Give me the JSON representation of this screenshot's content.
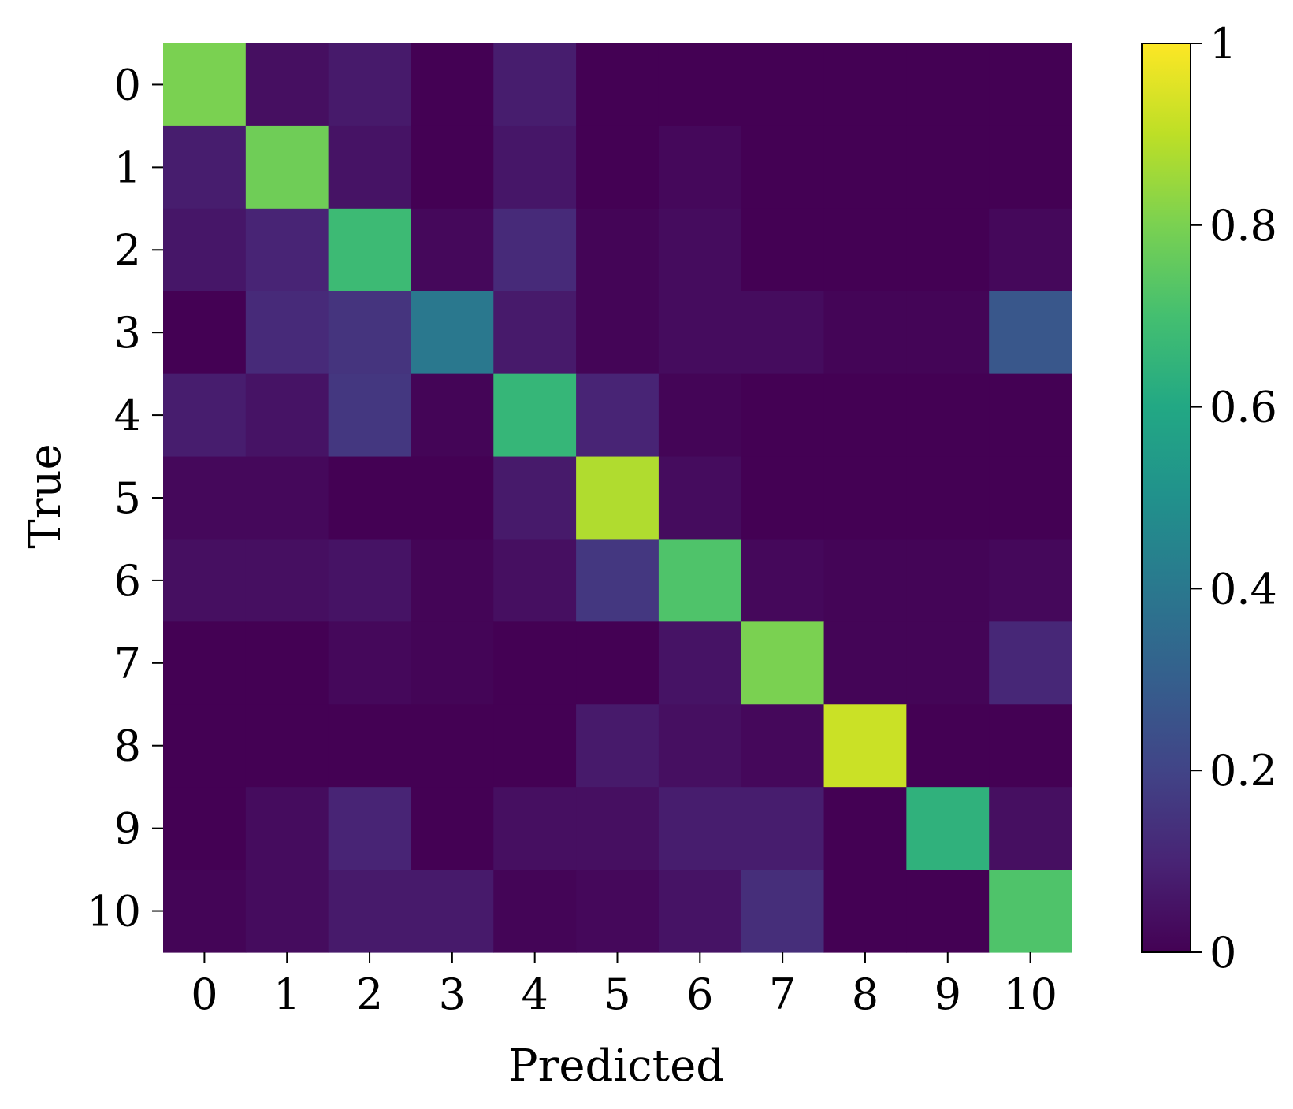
{
  "chart_data": {
    "type": "heatmap",
    "xlabel": "Predicted",
    "ylabel": "True",
    "x_tick_labels": [
      "0",
      "1",
      "2",
      "3",
      "4",
      "5",
      "6",
      "7",
      "8",
      "9",
      "10"
    ],
    "y_tick_labels": [
      "0",
      "1",
      "2",
      "3",
      "4",
      "5",
      "6",
      "7",
      "8",
      "9",
      "10"
    ],
    "colorbar": {
      "colormap": "viridis",
      "range": [
        0,
        1
      ],
      "tick_values": [
        0,
        0.2,
        0.4,
        0.6,
        0.8,
        1
      ],
      "tick_labels": [
        "0",
        "0.2",
        "0.4",
        "0.6",
        "0.8",
        "1"
      ]
    },
    "values": [
      [
        0.8,
        0.04,
        0.07,
        0.0,
        0.08,
        0.0,
        0.0,
        0.0,
        0.0,
        0.0,
        0.0
      ],
      [
        0.08,
        0.78,
        0.05,
        0.0,
        0.06,
        0.0,
        0.02,
        0.0,
        0.0,
        0.0,
        0.0
      ],
      [
        0.06,
        0.1,
        0.68,
        0.02,
        0.12,
        0.01,
        0.03,
        0.0,
        0.0,
        0.0,
        0.02
      ],
      [
        0.0,
        0.12,
        0.15,
        0.4,
        0.07,
        0.01,
        0.03,
        0.03,
        0.01,
        0.01,
        0.27
      ],
      [
        0.08,
        0.05,
        0.16,
        0.01,
        0.66,
        0.1,
        0.01,
        0.0,
        0.0,
        0.0,
        0.0
      ],
      [
        0.02,
        0.02,
        0.0,
        0.0,
        0.07,
        0.88,
        0.03,
        0.0,
        0.0,
        0.0,
        0.0
      ],
      [
        0.04,
        0.04,
        0.05,
        0.01,
        0.04,
        0.16,
        0.72,
        0.02,
        0.01,
        0.01,
        0.02
      ],
      [
        0.0,
        0.0,
        0.02,
        0.01,
        0.0,
        0.0,
        0.05,
        0.8,
        0.01,
        0.01,
        0.11
      ],
      [
        0.0,
        0.0,
        0.0,
        0.0,
        0.0,
        0.07,
        0.04,
        0.02,
        0.92,
        0.0,
        0.0
      ],
      [
        0.0,
        0.03,
        0.1,
        0.0,
        0.04,
        0.04,
        0.08,
        0.08,
        0.0,
        0.64,
        0.04
      ],
      [
        0.01,
        0.03,
        0.07,
        0.07,
        0.01,
        0.02,
        0.05,
        0.13,
        0.0,
        0.0,
        0.72
      ]
    ]
  }
}
